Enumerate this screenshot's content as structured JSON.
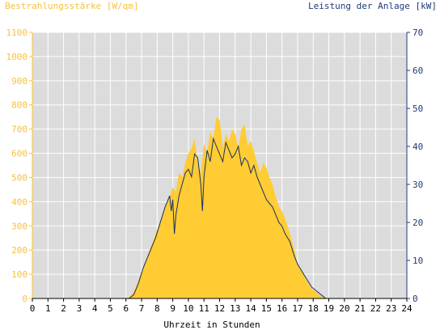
{
  "chart_data": {
    "type": "area",
    "left_axis_title": "Bestrahlungsstärke [W/qm]",
    "right_axis_title": "Leistung der Anlage [kW]",
    "xlabel": "Uhrzeit in Stunden",
    "xlim": [
      0,
      24
    ],
    "ylim_left": [
      0,
      1100
    ],
    "ylim_right": [
      0,
      70
    ],
    "x_ticks": [
      "0",
      "1",
      "2",
      "3",
      "4",
      "5",
      "6",
      "7",
      "8",
      "9",
      "10",
      "11",
      "12",
      "13",
      "14",
      "15",
      "16",
      "17",
      "18",
      "19",
      "20",
      "21",
      "22",
      "23",
      "24"
    ],
    "y_left_ticks": [
      "0",
      "100",
      "200",
      "300",
      "400",
      "500",
      "600",
      "700",
      "800",
      "900",
      "1000",
      "1100"
    ],
    "y_right_ticks": [
      "0",
      "10",
      "20",
      "30",
      "40",
      "50",
      "60",
      "70"
    ],
    "grid": "vertical+horizontal",
    "colors": {
      "irradiance": "#ffcc33",
      "power": "#1a2f66",
      "plot_bg": "#dcdcdc",
      "left_axis": "#f5c242",
      "right_axis": "#1f3a78",
      "grid": "#ffffff"
    },
    "series": [
      {
        "name": "Bestrahlungsstärke [W/qm]",
        "axis": "left",
        "x": [
          0,
          6.0,
          6.3,
          6.6,
          7.0,
          7.4,
          7.8,
          8.2,
          8.5,
          8.8,
          9.0,
          9.2,
          9.4,
          9.6,
          9.8,
          10.0,
          10.2,
          10.4,
          10.6,
          10.8,
          11.0,
          11.2,
          11.4,
          11.6,
          11.8,
          12.0,
          12.2,
          12.4,
          12.6,
          12.8,
          13.0,
          13.2,
          13.4,
          13.6,
          13.8,
          14.0,
          14.2,
          14.4,
          14.6,
          14.8,
          15.0,
          15.2,
          15.4,
          15.6,
          15.8,
          16.0,
          16.2,
          16.5,
          16.8,
          17.0,
          17.3,
          17.6,
          17.9,
          18.2,
          18.5,
          18.8,
          19.0,
          24
        ],
        "values": [
          0,
          0,
          10,
          40,
          110,
          180,
          250,
          320,
          380,
          420,
          460,
          440,
          520,
          500,
          560,
          600,
          620,
          660,
          560,
          520,
          640,
          600,
          690,
          660,
          750,
          740,
          620,
          680,
          650,
          700,
          680,
          620,
          700,
          720,
          630,
          650,
          610,
          560,
          520,
          560,
          540,
          500,
          470,
          420,
          380,
          360,
          330,
          270,
          200,
          140,
          110,
          70,
          40,
          25,
          10,
          0,
          0,
          0
        ]
      },
      {
        "name": "Leistung der Anlage [kW]",
        "axis": "right",
        "x": [
          0,
          6.2,
          6.5,
          6.8,
          7.1,
          7.5,
          7.9,
          8.2,
          8.5,
          8.8,
          8.9,
          9.0,
          9.1,
          9.2,
          9.4,
          9.6,
          9.8,
          10.0,
          10.2,
          10.4,
          10.6,
          10.8,
          10.9,
          11.0,
          11.2,
          11.4,
          11.6,
          11.8,
          12.0,
          12.2,
          12.4,
          12.6,
          12.8,
          13.0,
          13.2,
          13.4,
          13.6,
          13.8,
          14.0,
          14.2,
          14.4,
          14.6,
          14.8,
          15.0,
          15.2,
          15.4,
          15.6,
          15.8,
          16.0,
          16.2,
          16.5,
          16.8,
          17.0,
          17.3,
          17.6,
          17.9,
          18.2,
          18.5,
          18.8,
          19.0,
          24
        ],
        "values": [
          0,
          0,
          1,
          4,
          8,
          12,
          16,
          20,
          24,
          27,
          23,
          26,
          17,
          22,
          27,
          30,
          33,
          34,
          32,
          38,
          37,
          30,
          23,
          32,
          39,
          36,
          42,
          40,
          38,
          36,
          41,
          39,
          37,
          38,
          40,
          35,
          37,
          36,
          33,
          35,
          32,
          30,
          28,
          26,
          25,
          24,
          22,
          20,
          19,
          17,
          15,
          11,
          9,
          7,
          5,
          3,
          2,
          1,
          0,
          0,
          0
        ]
      }
    ]
  }
}
